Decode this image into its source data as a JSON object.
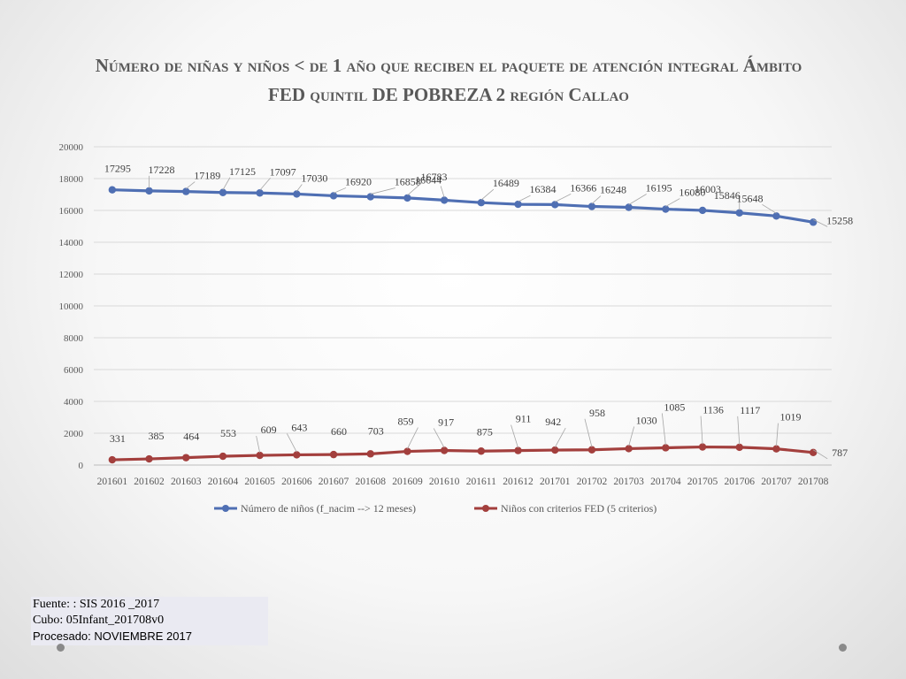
{
  "chart_data": {
    "type": "line",
    "title": "Número de niñas y niños < de 1 año que reciben el paquete de atención integral Ámbito FED quintil DE POBREZA 2 región Callao",
    "categories": [
      "201601",
      "201602",
      "201603",
      "201604",
      "201605",
      "201606",
      "201607",
      "201608",
      "201609",
      "201610",
      "201611",
      "201612",
      "201701",
      "201702",
      "201703",
      "201704",
      "201705",
      "201706",
      "201707",
      "201708"
    ],
    "ylim": [
      0,
      20000
    ],
    "yticks": [
      0,
      2000,
      4000,
      6000,
      8000,
      10000,
      12000,
      14000,
      16000,
      18000,
      20000
    ],
    "grid": true,
    "legend": "bottom",
    "series": [
      {
        "name": "Número de niños (f_nacim --> 12 meses)",
        "color": "#4f6fb3",
        "values": [
          17295,
          17228,
          17189,
          17125,
          17097,
          17030,
          16920,
          16858,
          16783,
          16644,
          16489,
          16384,
          16366,
          16248,
          16195,
          16080,
          16003,
          15846,
          15648,
          15258
        ]
      },
      {
        "name": "Niños con criterios FED (5 criterios)",
        "color": "#a33f3d",
        "values": [
          331,
          385,
          464,
          553,
          609,
          643,
          660,
          703,
          859,
          917,
          875,
          911,
          942,
          958,
          1030,
          1085,
          1136,
          1117,
          1019,
          787
        ]
      }
    ]
  },
  "source": {
    "line1": "Fuente: : SIS 2016 _2017",
    "line2": "Cubo:  05Infant_201708v0",
    "line3": "Procesado: NOVIEMBRE 2017"
  }
}
